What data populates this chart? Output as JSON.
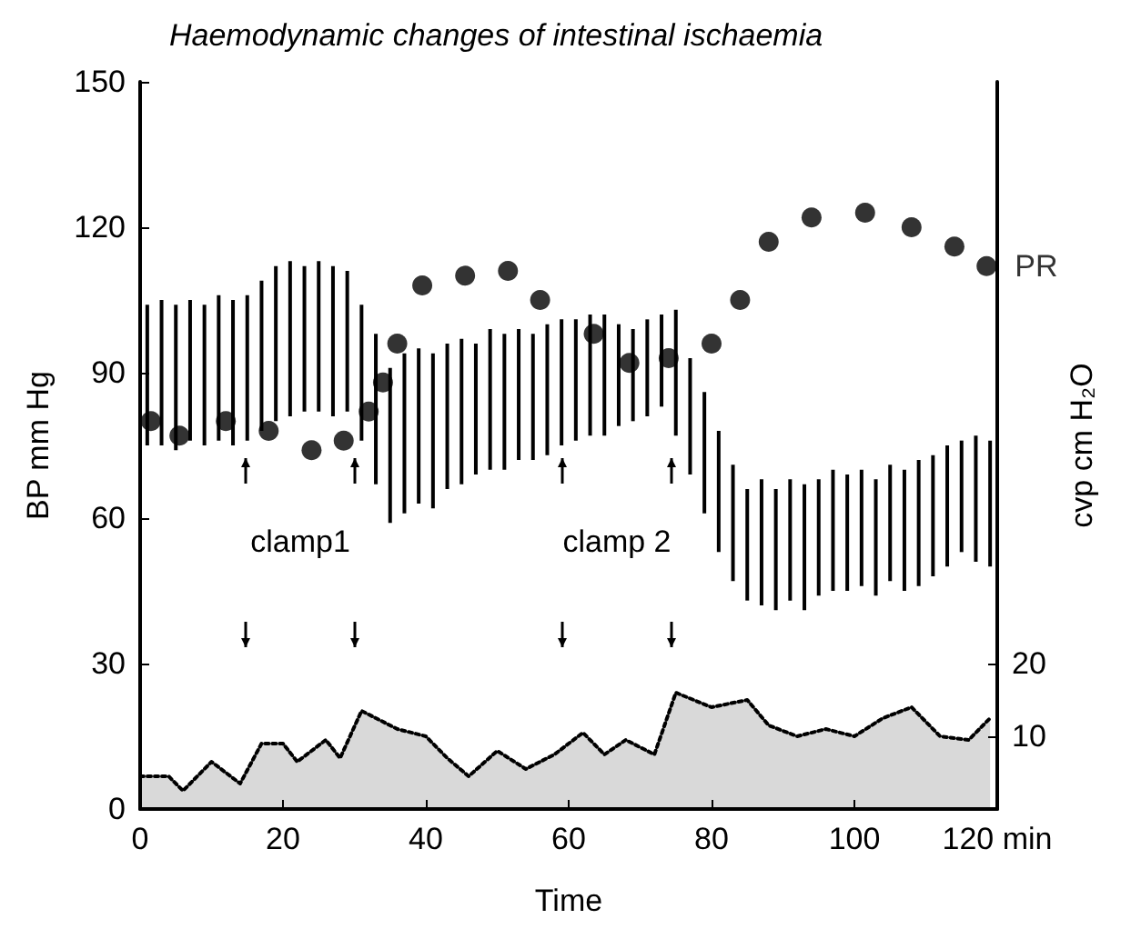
{
  "chart_data": {
    "type": "bar",
    "title": "Haemodynamic changes of intestinal ischaemia",
    "xlabel": "Time",
    "ylabel": "BP mm Hg",
    "y2label": "cvp cm H₂O",
    "xlim": [
      0,
      120
    ],
    "xticks": [
      0,
      20,
      40,
      60,
      80,
      100,
      {
        "value": 120,
        "label": "120 min"
      }
    ],
    "ylim": [
      0,
      150
    ],
    "yticks": [
      0,
      30,
      60,
      90,
      120,
      150
    ],
    "y2lim": [
      0,
      100
    ],
    "y2ticks": [
      10,
      20
    ],
    "grid": false,
    "legend": false,
    "annotations": [
      "clamp1",
      "clamp 2"
    ],
    "series": [
      {
        "color": "#000000",
        "x": [
          1,
          3,
          5,
          7,
          9,
          11,
          13,
          15,
          17,
          19,
          21,
          23,
          25,
          27,
          29,
          31,
          33,
          35,
          37,
          39,
          41,
          43,
          45,
          47,
          49,
          51,
          53,
          55,
          57,
          59,
          61,
          63,
          65,
          67,
          69,
          71,
          73,
          75,
          77,
          79,
          81,
          83,
          85,
          87,
          89,
          91,
          93,
          95,
          97,
          99,
          101,
          103,
          105,
          107,
          109,
          111,
          113,
          115,
          117,
          119
        ],
        "base": [
          75,
          75,
          74,
          76,
          75,
          76,
          75,
          76,
          78,
          80,
          81,
          82,
          82,
          81,
          82,
          76,
          67,
          59,
          61,
          63,
          62,
          66,
          67,
          69,
          70,
          70,
          72,
          72,
          73,
          75,
          76,
          77,
          77,
          79,
          80,
          81,
          83,
          77,
          69,
          61,
          53,
          47,
          43,
          42,
          41,
          43,
          41,
          44,
          45,
          45,
          46,
          44,
          47,
          45,
          46,
          48,
          50,
          53,
          51,
          50
        ],
        "values": [
          29,
          30,
          30,
          29,
          29,
          30,
          30,
          30,
          31,
          32,
          32,
          30,
          31,
          31,
          29,
          28,
          31,
          32,
          33,
          32,
          32,
          30,
          30,
          27,
          29,
          28,
          27,
          26,
          27,
          26,
          25,
          25,
          25,
          21,
          19,
          20,
          19,
          26,
          24,
          25,
          25,
          24,
          23,
          26,
          25,
          25,
          26,
          24,
          25,
          24,
          24,
          24,
          24,
          25,
          26,
          25,
          25,
          23,
          26,
          26
        ]
      },
      {
        "type": "scatter",
        "name": "PR",
        "color": "#000000",
        "marker": "circle",
        "x": [
          1.5,
          5.5,
          12,
          18,
          24,
          28.5,
          32,
          34,
          36,
          39.5,
          45.5,
          51.5,
          56,
          63.5,
          68.5,
          74,
          80,
          84,
          88,
          94,
          101.5,
          108,
          114,
          118.5
        ],
        "values": [
          80,
          77,
          80,
          78,
          74,
          76,
          82,
          88,
          96,
          108,
          110,
          111,
          105,
          98,
          92,
          93,
          96,
          105,
          117,
          122,
          123,
          120,
          116,
          112
        ]
      },
      {
        "type": "area",
        "axis": "y2",
        "color": "#000000",
        "line_style": "dotted",
        "x": [
          0,
          4,
          6,
          10,
          14,
          17,
          20,
          22,
          26,
          28,
          31,
          33,
          36,
          40,
          43,
          46,
          50,
          54,
          58,
          62,
          65,
          68,
          72,
          75,
          80,
          85,
          88,
          92,
          96,
          100,
          104,
          108,
          112,
          116,
          119
        ],
        "values": [
          4.5,
          4.5,
          2.5,
          6.5,
          3.5,
          9,
          9,
          6.5,
          9.5,
          7,
          13.5,
          12.5,
          11,
          10,
          7,
          4.5,
          8,
          5.5,
          7.5,
          10.5,
          7.5,
          9.5,
          7.5,
          16,
          14,
          15,
          11.5,
          10,
          11,
          10,
          12.5,
          14,
          10,
          9.5,
          12.5
        ]
      }
    ]
  }
}
